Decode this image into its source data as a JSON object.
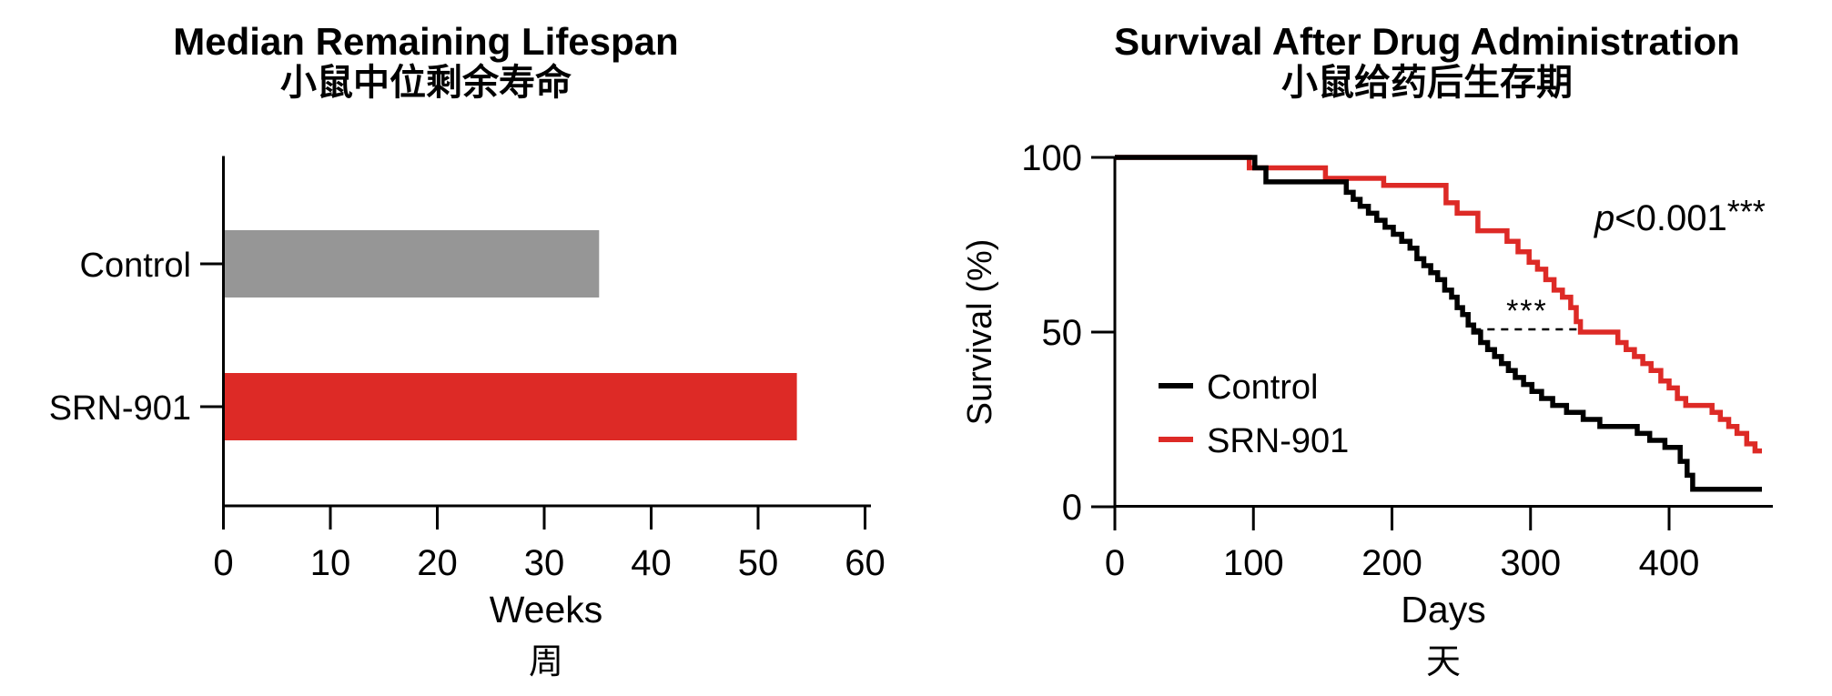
{
  "page": {
    "background": "#ffffff"
  },
  "chart_data": [
    {
      "id": "median-lifespan-bar",
      "type": "bar",
      "orientation": "horizontal",
      "title": "Median Remaining Lifespan",
      "subtitle_zh": "小鼠中位剩余寿命",
      "xlabel": "Weeks",
      "xlabel_zh": "周",
      "xlim": [
        0,
        60
      ],
      "x_ticks": [
        0,
        10,
        20,
        30,
        40,
        50,
        60
      ],
      "categories": [
        "Control",
        "SRN-901"
      ],
      "values": [
        35,
        53.5
      ],
      "bar_colors": [
        "#969696",
        "#dd2a26"
      ],
      "grid": false
    },
    {
      "id": "km-survival",
      "type": "line",
      "line_style": "step-after",
      "title": "Survival After Drug Administration",
      "subtitle_zh": "小鼠给药后生存期",
      "xlabel": "Days",
      "xlabel_zh": "天",
      "ylabel": "Survival (%)",
      "xlim": [
        0,
        470
      ],
      "ylim": [
        0,
        100
      ],
      "x_ticks": [
        0,
        100,
        200,
        300,
        400
      ],
      "y_ticks": [
        100,
        50,
        0
      ],
      "grid": false,
      "legend": {
        "position": "inside-lower-left",
        "entries": [
          {
            "label": "Control",
            "color": "#000000"
          },
          {
            "label": "SRN-901",
            "color": "#dd2a26"
          }
        ]
      },
      "p_annotation": {
        "p": "p",
        "comparison": "<0.001",
        "stars": "***"
      },
      "median_bracket": {
        "stars": "***",
        "percent": 50,
        "from_day": 259,
        "to_day": 336,
        "line_style": "dashed"
      },
      "series": [
        {
          "name": "Control",
          "color": "#000000",
          "median_days": 259,
          "points": [
            [
              0,
              100
            ],
            [
              101,
              97
            ],
            [
              109,
              93
            ],
            [
              167,
              90
            ],
            [
              172,
              88
            ],
            [
              177,
              86
            ],
            [
              183,
              84
            ],
            [
              189,
              82
            ],
            [
              195,
              80
            ],
            [
              201,
              78
            ],
            [
              207,
              76
            ],
            [
              213,
              74
            ],
            [
              218,
              71
            ],
            [
              223,
              69
            ],
            [
              228,
              67
            ],
            [
              233,
              65
            ],
            [
              238,
              62
            ],
            [
              243,
              60
            ],
            [
              247,
              57
            ],
            [
              251,
              55
            ],
            [
              255,
              52
            ],
            [
              259,
              50
            ],
            [
              264,
              47
            ],
            [
              269,
              45
            ],
            [
              274,
              43
            ],
            [
              279,
              41
            ],
            [
              284,
              39
            ],
            [
              289,
              37
            ],
            [
              295,
              35
            ],
            [
              301,
              33
            ],
            [
              308,
              31
            ],
            [
              316,
              29
            ],
            [
              326,
              27
            ],
            [
              338,
              25
            ],
            [
              350,
              23
            ],
            [
              377,
              21
            ],
            [
              386,
              19
            ],
            [
              397,
              17
            ],
            [
              408,
              13
            ],
            [
              413,
              9
            ],
            [
              417,
              5
            ],
            [
              467,
              5
            ]
          ]
        },
        {
          "name": "SRN-901",
          "color": "#dd2a26",
          "median_days": 336,
          "points": [
            [
              0,
              100
            ],
            [
              97,
              97
            ],
            [
              152,
              94
            ],
            [
              194,
              92
            ],
            [
              239,
              87
            ],
            [
              247,
              84
            ],
            [
              262,
              79
            ],
            [
              283,
              76
            ],
            [
              291,
              73
            ],
            [
              299,
              70
            ],
            [
              305,
              68
            ],
            [
              311,
              65
            ],
            [
              317,
              62
            ],
            [
              323,
              60
            ],
            [
              329,
              57
            ],
            [
              333,
              53
            ],
            [
              336,
              50
            ],
            [
              363,
              47
            ],
            [
              369,
              45
            ],
            [
              375,
              43
            ],
            [
              381,
              41
            ],
            [
              387,
              39
            ],
            [
              394,
              36
            ],
            [
              400,
              34
            ],
            [
              406,
              31
            ],
            [
              412,
              29
            ],
            [
              431,
              27
            ],
            [
              437,
              25
            ],
            [
              443,
              23
            ],
            [
              449,
              21
            ],
            [
              456,
              18
            ],
            [
              462,
              16
            ],
            [
              467,
              16
            ]
          ]
        }
      ]
    }
  ]
}
